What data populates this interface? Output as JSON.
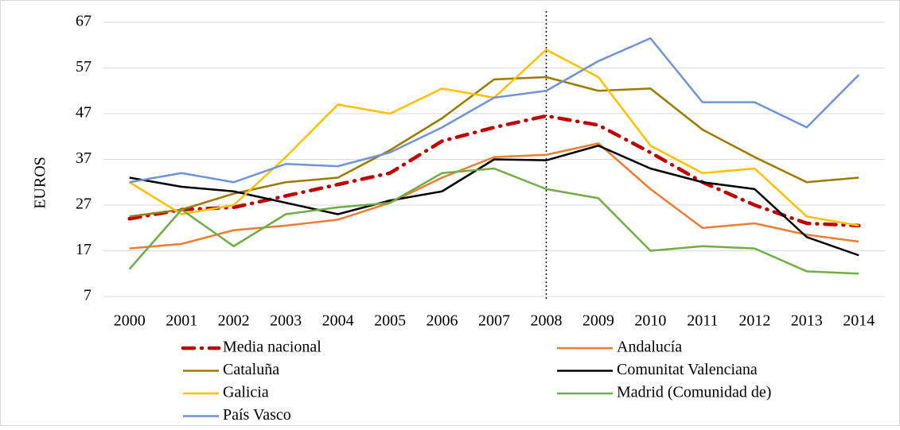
{
  "chart_data": {
    "type": "line",
    "y_label": "EUROS",
    "categories": [
      "2000",
      "2001",
      "2002",
      "2003",
      "2004",
      "2005",
      "2006",
      "2007",
      "2008",
      "2009",
      "2010",
      "2011",
      "2012",
      "2013",
      "2014"
    ],
    "ylim": [
      7,
      67
    ],
    "yticks": [
      7,
      17,
      27,
      37,
      47,
      57,
      67
    ],
    "grid": true,
    "series": [
      {
        "name": "Media nacional",
        "color": "#c00000",
        "line_style": "dash-dot",
        "values": [
          24,
          26,
          26.5,
          29,
          31.5,
          34,
          41,
          44,
          46.5,
          44.5,
          38.5,
          32,
          27,
          23,
          22.5
        ]
      },
      {
        "name": "Andalucía",
        "color": "#ed7d31",
        "values": [
          17.5,
          18.5,
          21.5,
          22.5,
          23.8,
          27.5,
          33,
          37.5,
          38,
          40.5,
          30.5,
          22,
          23,
          20.5,
          19
        ]
      },
      {
        "name": "Cataluña",
        "color": "#9c7a00",
        "values": [
          24.5,
          26,
          29.5,
          32,
          33,
          39,
          46,
          54.5,
          55,
          52,
          52.5,
          43.5,
          37.5,
          32,
          33
        ]
      },
      {
        "name": "Comunitat Valenciana",
        "color": "#000000",
        "values": [
          33,
          31,
          30,
          27.5,
          25,
          28,
          30,
          37,
          36.8,
          40,
          35,
          32,
          30.5,
          20,
          16
        ]
      },
      {
        "name": "Galicia",
        "color": "#ffc000",
        "values": [
          32,
          25,
          27,
          37.5,
          49,
          47,
          52.5,
          50.5,
          61,
          55,
          40,
          34,
          35,
          24.5,
          22.5
        ]
      },
      {
        "name": "Madrid (Comunidad de)",
        "color": "#70ad47",
        "values": [
          13,
          26,
          18,
          25,
          26.5,
          27.5,
          34,
          35,
          30.5,
          28.5,
          17,
          18,
          17.5,
          12.5,
          12
        ]
      },
      {
        "name": "País Vasco",
        "color": "#6f93d6",
        "values": [
          32,
          34,
          32,
          36,
          35.5,
          38.5,
          44,
          50.5,
          52,
          58.5,
          63.5,
          49.5,
          49.5,
          44,
          55.5
        ]
      }
    ]
  }
}
